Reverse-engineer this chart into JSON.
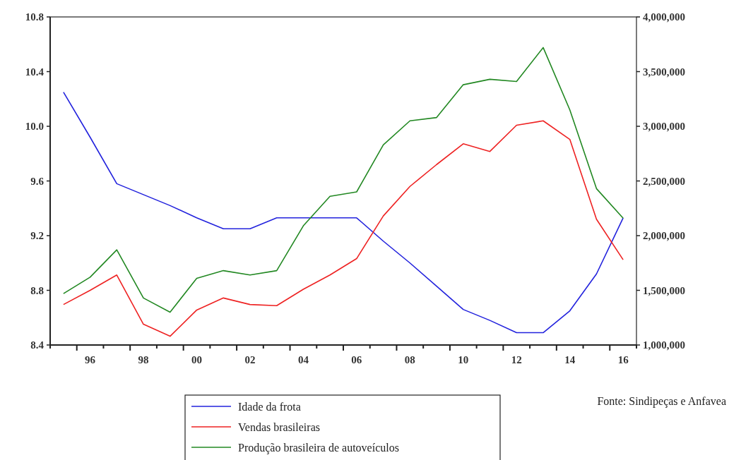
{
  "chart_data": {
    "type": "line",
    "x": [
      1995,
      1996,
      1997,
      1998,
      1999,
      2000,
      2001,
      2002,
      2003,
      2004,
      2005,
      2006,
      2007,
      2008,
      2009,
      2010,
      2011,
      2012,
      2013,
      2014,
      2015,
      2016
    ],
    "xlim": [
      1994.5,
      2016.5
    ],
    "xticks": [
      {
        "value": 1996,
        "label": "96"
      },
      {
        "value": 1998,
        "label": "98"
      },
      {
        "value": 2000,
        "label": "00"
      },
      {
        "value": 2002,
        "label": "02"
      },
      {
        "value": 2004,
        "label": "04"
      },
      {
        "value": 2006,
        "label": "06"
      },
      {
        "value": 2008,
        "label": "08"
      },
      {
        "value": 2010,
        "label": "10"
      },
      {
        "value": 2012,
        "label": "12"
      },
      {
        "value": 2014,
        "label": "14"
      },
      {
        "value": 2016,
        "label": "16"
      }
    ],
    "ylim": [
      8.4,
      10.8
    ],
    "yticks": [
      {
        "value": 8.4,
        "label": "8.4"
      },
      {
        "value": 8.8,
        "label": "8.8"
      },
      {
        "value": 9.2,
        "label": "9.2"
      },
      {
        "value": 9.6,
        "label": "9.6"
      },
      {
        "value": 10.0,
        "label": "10.0"
      },
      {
        "value": 10.4,
        "label": "10.4"
      },
      {
        "value": 10.8,
        "label": "10.8"
      }
    ],
    "y2lim": [
      1000000,
      4000000
    ],
    "y2ticks": [
      {
        "value": 1000000,
        "label": "1,000,000"
      },
      {
        "value": 1500000,
        "label": "1,500,000"
      },
      {
        "value": 2000000,
        "label": "2,000,000"
      },
      {
        "value": 2500000,
        "label": "2,500,000"
      },
      {
        "value": 3000000,
        "label": "3,000,000"
      },
      {
        "value": 3500000,
        "label": "3,500,000"
      },
      {
        "value": 4000000,
        "label": "4,000,000"
      }
    ],
    "series": [
      {
        "name": "Idade da frota",
        "color": "#2222dd",
        "values": [
          10.25,
          9.92,
          9.58,
          9.5,
          9.42,
          9.33,
          9.25,
          9.25,
          9.33,
          9.33,
          9.33,
          9.33,
          9.16,
          9.0,
          8.83,
          8.66,
          8.58,
          8.49,
          8.49,
          8.65,
          8.92,
          9.33
        ]
      },
      {
        "name": "Vendas brasileiras",
        "color": "#ee2222",
        "axis": "y2",
        "values": [
          1370000,
          1500000,
          1640000,
          1190000,
          1080000,
          1320000,
          1430000,
          1370000,
          1360000,
          1510000,
          1640000,
          1790000,
          2180000,
          2450000,
          2650000,
          2840000,
          2770000,
          3010000,
          3050000,
          2880000,
          2150000,
          1780000
        ]
      },
      {
        "name": "Produção brasileira de autoveículos",
        "color": "#228822",
        "axis": "y2",
        "values": [
          1470000,
          1620000,
          1870000,
          1430000,
          1300000,
          1610000,
          1680000,
          1640000,
          1680000,
          2090000,
          2360000,
          2400000,
          2830000,
          3050000,
          3080000,
          3380000,
          3430000,
          3410000,
          3720000,
          3150000,
          2430000,
          2160000
        ]
      }
    ],
    "legend": "bottom",
    "grid": false,
    "annotations": [
      "Fonte: Sindipeças e Anfavea"
    ]
  }
}
